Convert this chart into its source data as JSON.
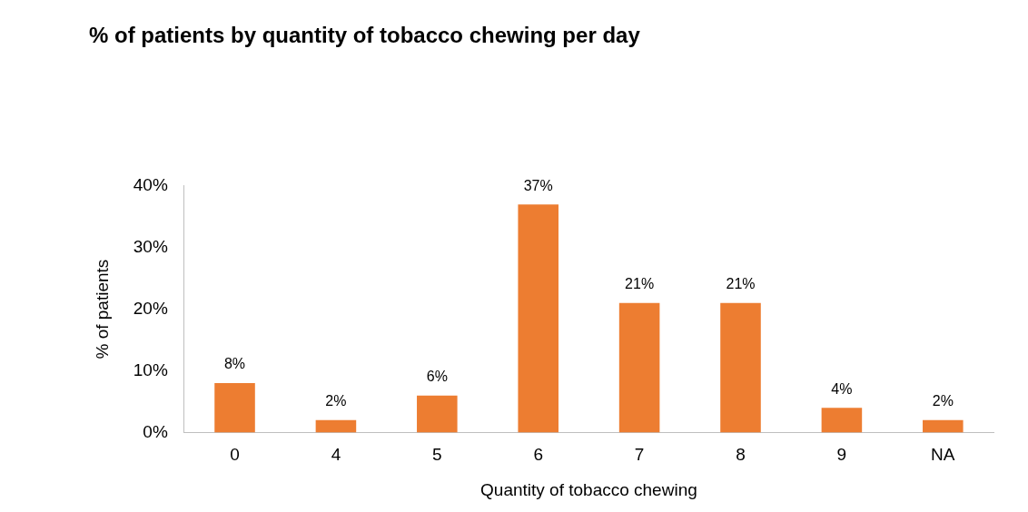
{
  "chart_data": {
    "type": "bar",
    "title": "% of patients by quantity of tobacco chewing per day",
    "xlabel": "Quantity of tobacco chewing",
    "ylabel": "% of patients",
    "categories": [
      "0",
      "4",
      "5",
      "6",
      "7",
      "8",
      "9",
      "NA"
    ],
    "values": [
      8,
      2,
      6,
      37,
      21,
      21,
      4,
      2
    ],
    "value_labels": [
      "8%",
      "2%",
      "6%",
      "37%",
      "21%",
      "21%",
      "4%",
      "2%"
    ],
    "color": "#ed7d31",
    "ylim": [
      0,
      40
    ],
    "yticks": [
      {
        "value": 0,
        "label": "0%"
      },
      {
        "value": 10,
        "label": "10%"
      },
      {
        "value": 20,
        "label": "20%"
      },
      {
        "value": 30,
        "label": "30%"
      },
      {
        "value": 40,
        "label": "40%"
      }
    ],
    "grid": false,
    "legend": false
  }
}
